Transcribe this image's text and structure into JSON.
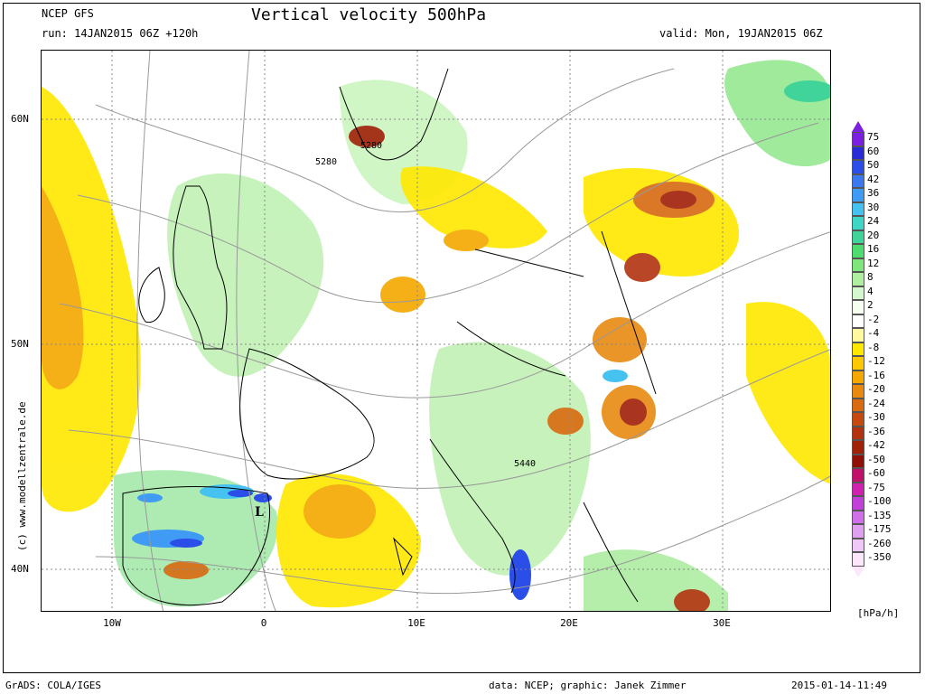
{
  "header": {
    "model": "NCEP GFS",
    "run": "run: 14JAN2015 06Z +120h",
    "title": "Vertical velocity 500hPa",
    "valid": "valid: Mon, 19JAN2015 06Z"
  },
  "map": {
    "lat_labels": [
      "60N",
      "50N",
      "40N"
    ],
    "lon_labels": [
      "10W",
      "0",
      "10E",
      "20E",
      "30E"
    ],
    "contour_labels": [
      "5280",
      "5280",
      "5440"
    ],
    "low_marker": "L",
    "side_credit": "(c) www.modellzentrale.de"
  },
  "legend": {
    "unit": "[hPa/h]",
    "levels": [
      "75",
      "60",
      "50",
      "42",
      "36",
      "30",
      "24",
      "20",
      "16",
      "12",
      "8",
      "4",
      "2",
      "-2",
      "-4",
      "-8",
      "-12",
      "-16",
      "-20",
      "-24",
      "-30",
      "-36",
      "-42",
      "-50",
      "-60",
      "-75",
      "-100",
      "-135",
      "-175",
      "-260",
      "-350"
    ],
    "colors": [
      "#7b1fe0",
      "#2a2ad8",
      "#2b4de8",
      "#3a78f0",
      "#3f9bf4",
      "#45c2f0",
      "#3fd6c6",
      "#40d49a",
      "#4fdc6f",
      "#7ee67a",
      "#aef0a0",
      "#d6f8d0",
      "#f6fff0",
      "#ffffff",
      "#fffaa0",
      "#ffe800",
      "#ffc800",
      "#f5a800",
      "#e88a10",
      "#d86a10",
      "#c44a10",
      "#b23210",
      "#a02008",
      "#901008",
      "#c0106a",
      "#d020b0",
      "#c040d8",
      "#d070e8",
      "#e0a0f0",
      "#f0c8f8",
      "#fbe6fb"
    ]
  },
  "footer": {
    "left": "GrADS: COLA/IGES",
    "middle": "data: NCEP; graphic: Janek Zimmer",
    "right": "2015-01-14-11:49"
  }
}
